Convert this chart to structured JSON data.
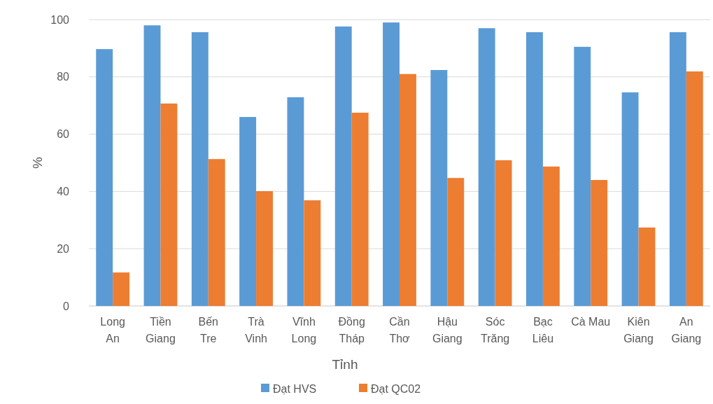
{
  "chart_data": {
    "type": "bar",
    "xlabel": "Tỉnh",
    "ylabel": "%",
    "categories": [
      "Long An",
      "Tiền Giang",
      "Bến Tre",
      "Trà Vinh",
      "Vĩnh Long",
      "Đồng Tháp",
      "Cần Thơ",
      "Hậu Giang",
      "Sóc Trăng",
      "Bạc Liêu",
      "Cà Mau",
      "Kiên Giang",
      "An Giang"
    ],
    "series": [
      {
        "name": "Đạt HVS",
        "color": "#5b9bd5",
        "values": [
          89.7,
          98,
          95.6,
          66,
          72.9,
          97.6,
          99,
          82.4,
          97,
          95.6,
          90.5,
          74.6,
          95.6
        ]
      },
      {
        "name": "Đạt QC02",
        "color": "#ed7d31",
        "values": [
          11.7,
          70.7,
          51.3,
          40.1,
          36.9,
          67.5,
          81,
          44.7,
          50.9,
          48.7,
          44,
          27.4,
          81.9
        ]
      }
    ],
    "ylim": [
      0,
      100
    ],
    "yticks": [
      0,
      20,
      40,
      60,
      80,
      100
    ],
    "grid": "y",
    "legend": "bottom"
  }
}
